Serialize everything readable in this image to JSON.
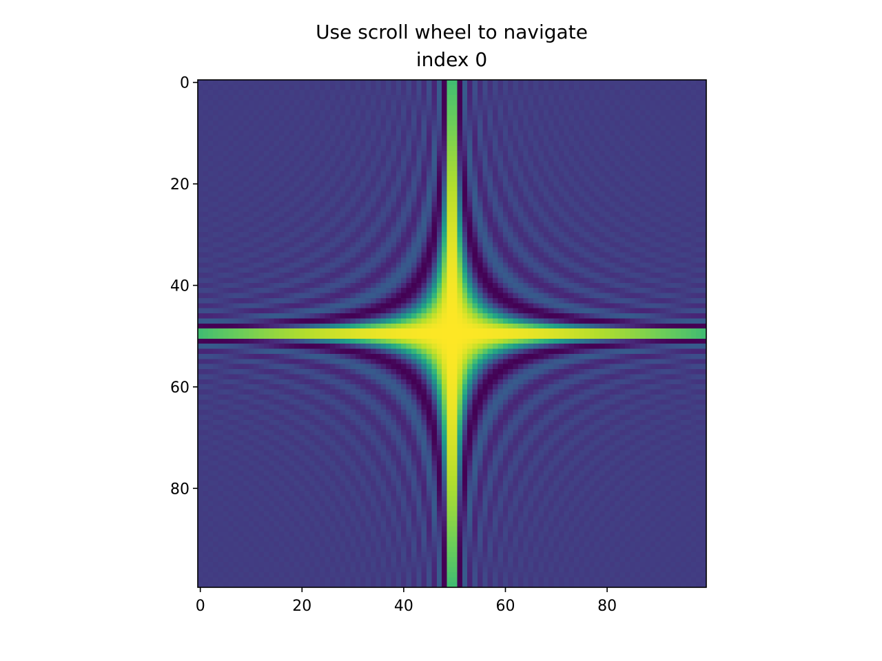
{
  "chart_data": {
    "type": "heatmap",
    "title": "Use scroll wheel to navigate",
    "subtitle": "index 0",
    "xlabel": "",
    "ylabel": "",
    "shape": [
      100,
      100
    ],
    "xlim": [
      -0.5,
      99.5
    ],
    "ylim": [
      99.5,
      -0.5
    ],
    "x_ticks": [
      0,
      20,
      40,
      60,
      80
    ],
    "y_ticks": [
      0,
      20,
      40,
      60,
      80
    ],
    "x_tick_labels": [
      "0",
      "20",
      "40",
      "60",
      "80"
    ],
    "y_tick_labels": [
      "0",
      "20",
      "40",
      "60",
      "80"
    ],
    "colormap": "viridis",
    "function": "sin(x*y) / (x*y) on x, y in [-4π, 4π], 100 samples",
    "index": 0
  }
}
